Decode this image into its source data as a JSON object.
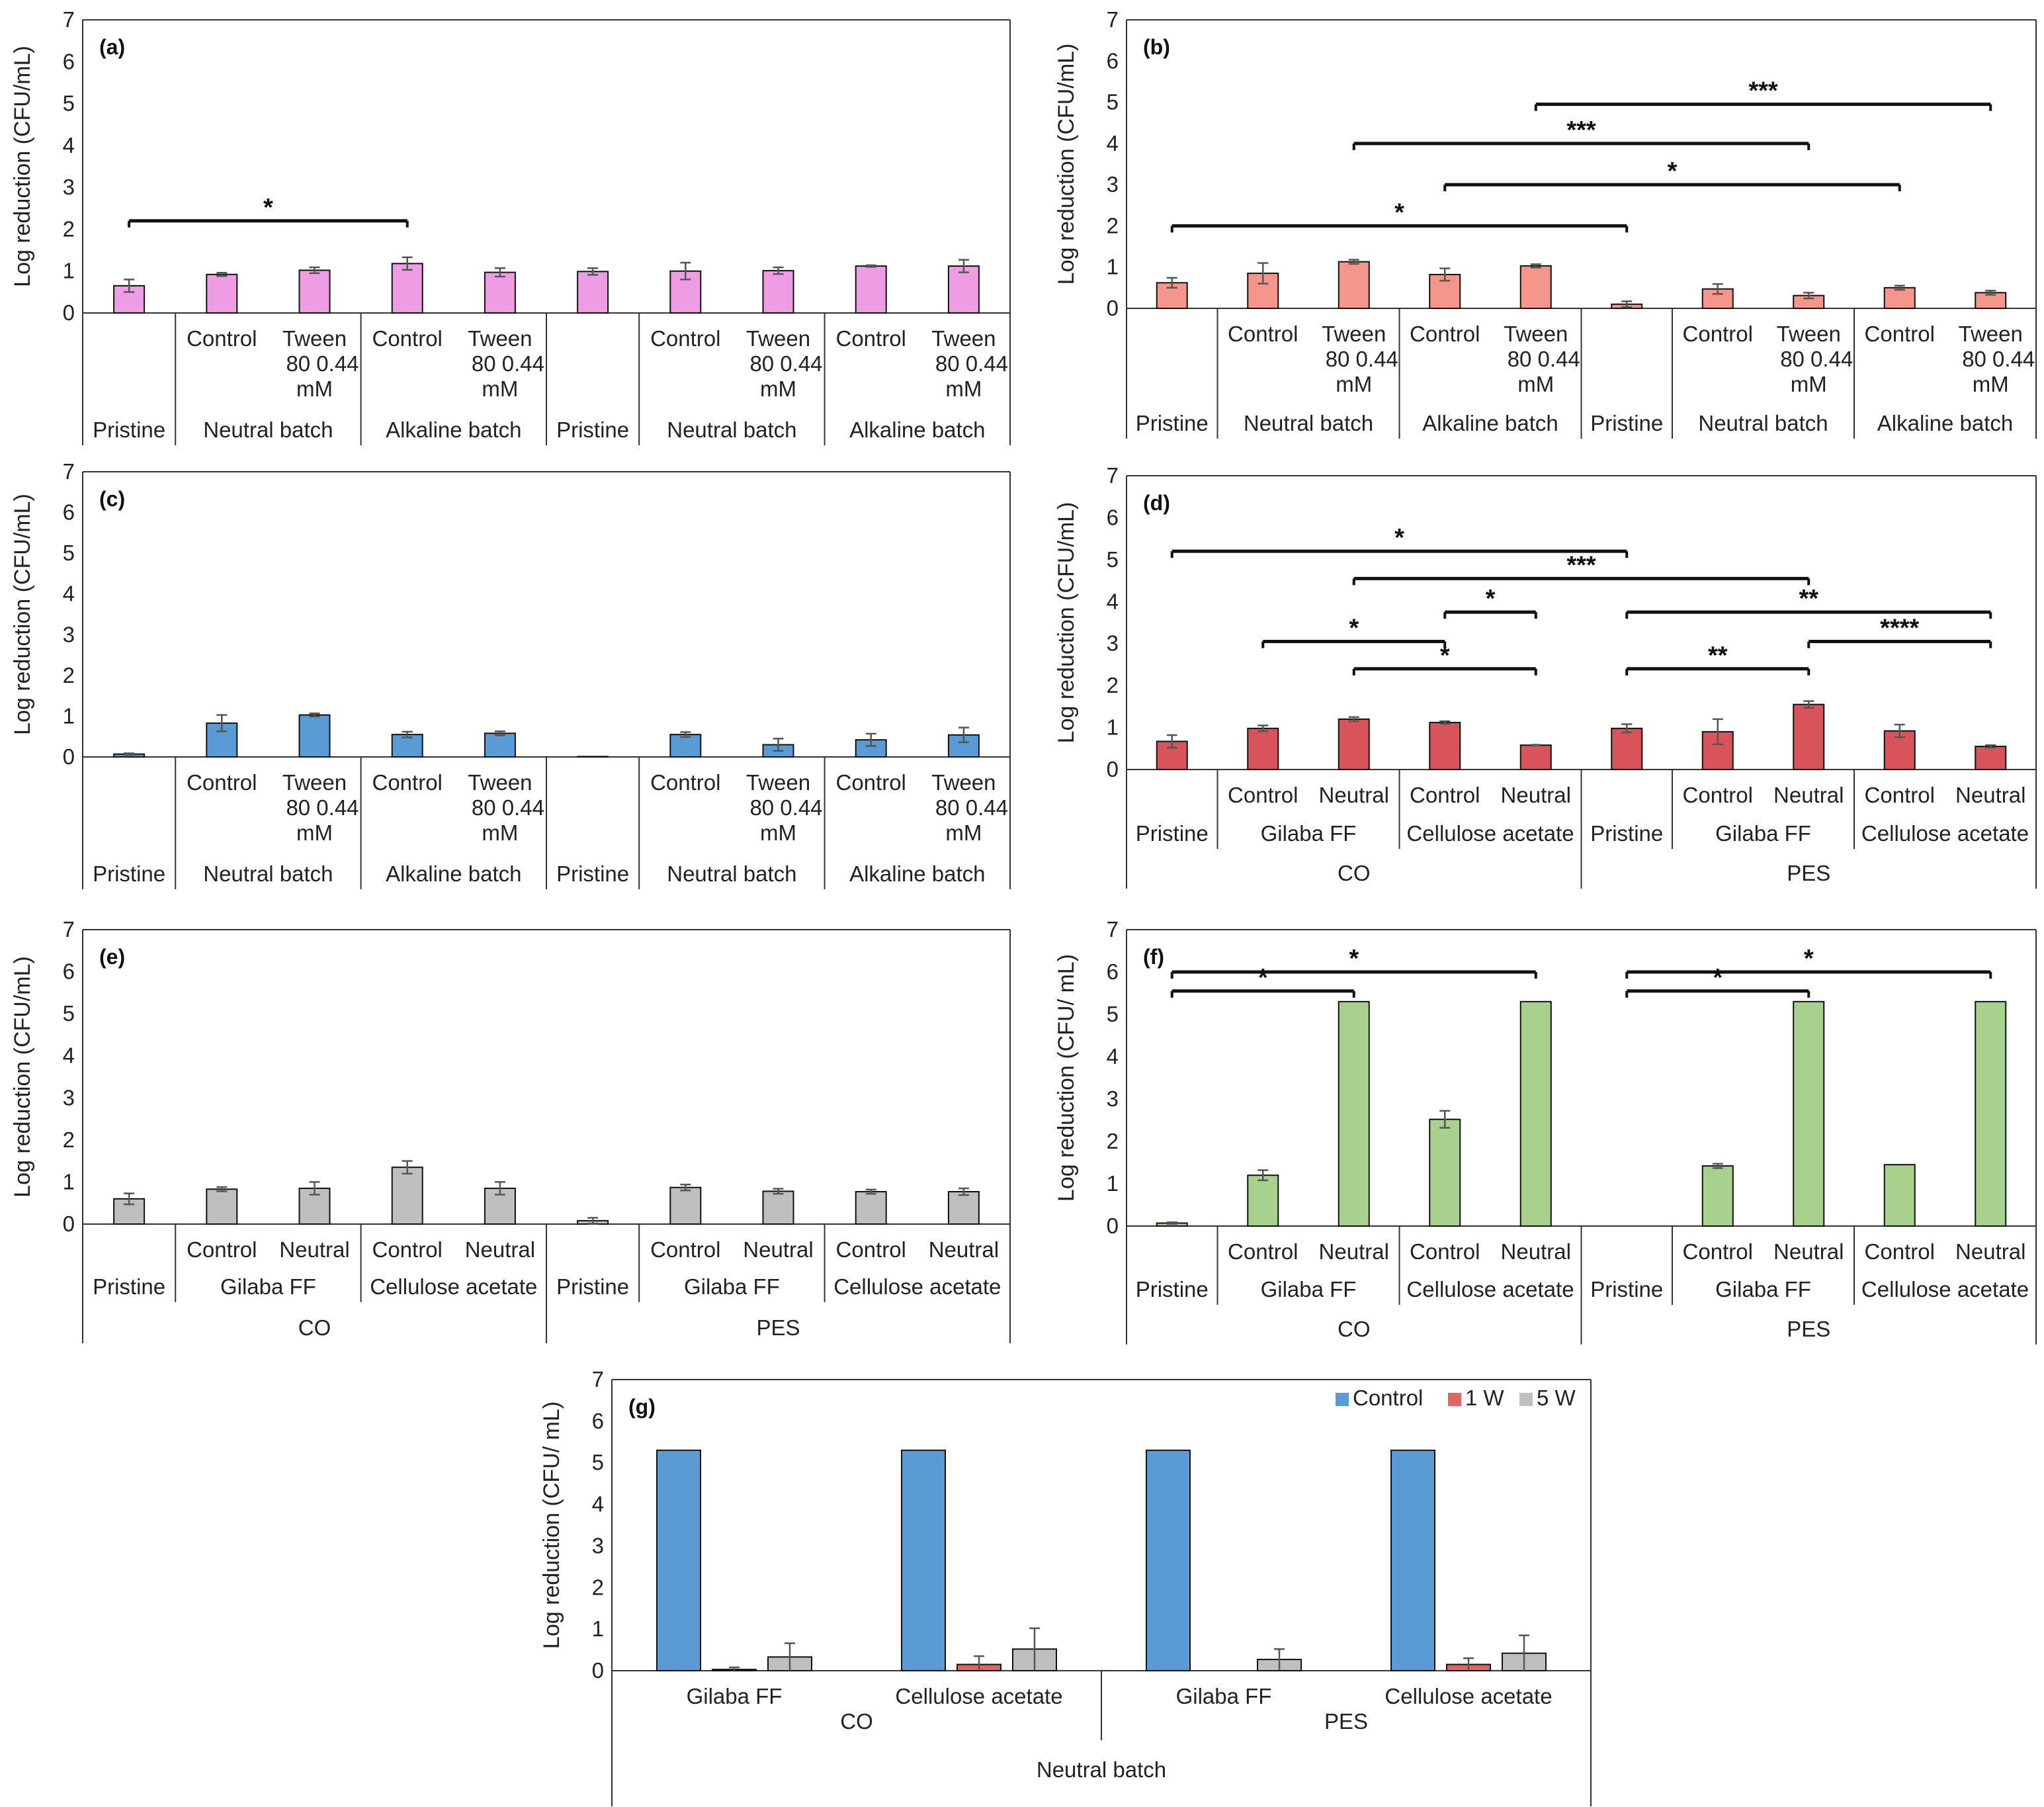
{
  "chart_data": [
    {
      "id": "a",
      "type": "bar",
      "panel_label": "(a)",
      "ylabel": "Log reduction (CFU/mL)",
      "ylim": [
        0,
        7
      ],
      "yticks": [
        "0",
        "1",
        "2",
        "3",
        "4",
        "5",
        "6",
        "7"
      ],
      "color": "#ee9ce4",
      "categories": [
        "",
        "Control",
        "Tween 80 0.44 mM",
        "Control",
        "Tween 80 0.44 mM",
        "",
        "Control",
        "Tween 80 0.44 mM",
        "Control",
        "Tween 80 0.44 mM"
      ],
      "cat_lines": [
        [],
        [
          "Control"
        ],
        [
          "Tween",
          "80   0.44",
          "mM"
        ],
        [
          "Control"
        ],
        [
          "Tween",
          "80   0.44",
          "mM"
        ],
        [],
        [
          "Control"
        ],
        [
          "Tween",
          "80   0.44",
          "mM"
        ],
        [
          "Control"
        ],
        [
          "Tween",
          "80   0.44",
          "mM"
        ]
      ],
      "groups": [
        {
          "label": "Pristine",
          "start": 0,
          "end": 0
        },
        {
          "label": "Neutral batch",
          "start": 1,
          "end": 2
        },
        {
          "label": "Alkaline batch",
          "start": 3,
          "end": 4
        },
        {
          "label": "Pristine",
          "start": 5,
          "end": 5
        },
        {
          "label": "Neutral batch",
          "start": 6,
          "end": 7
        },
        {
          "label": "Alkaline batch",
          "start": 8,
          "end": 9
        }
      ],
      "supergroups": [],
      "values": [
        0.65,
        0.92,
        1.02,
        1.18,
        0.97,
        0.99,
        1.0,
        1.01,
        1.12,
        1.12
      ],
      "errors": [
        0.15,
        0.04,
        0.07,
        0.15,
        0.1,
        0.08,
        0.2,
        0.08,
        0.02,
        0.15
      ],
      "significance": [
        {
          "from": 0,
          "to": 3,
          "y": 2.2,
          "label": "*"
        }
      ]
    },
    {
      "id": "b",
      "type": "bar",
      "panel_label": "(b)",
      "ylabel": "Log reduction (CFU/mL)",
      "ylim": [
        0,
        7
      ],
      "yticks": [
        "0",
        "1",
        "2",
        "3",
        "4",
        "5",
        "6",
        "7"
      ],
      "color": "#f5968c",
      "categories": [
        "",
        "Control",
        "Tween 80 0.44 mM",
        "Control",
        "Tween 80 0.44 mM",
        "",
        "Control",
        "Tween 80 0.44 mM",
        "Control",
        "Tween 80 0.44 mM"
      ],
      "cat_lines": [
        [],
        [
          "Control"
        ],
        [
          "Tween",
          "80   0.44",
          "mM"
        ],
        [
          "Control"
        ],
        [
          "Tween",
          "80   0.44",
          "mM"
        ],
        [],
        [
          "Control"
        ],
        [
          "Tween",
          "80   0.44",
          "mM"
        ],
        [
          "Control"
        ],
        [
          "Tween",
          "80   0.44",
          "mM"
        ]
      ],
      "groups": [
        {
          "label": "Pristine",
          "start": 0,
          "end": 0
        },
        {
          "label": "Neutral batch",
          "start": 1,
          "end": 2
        },
        {
          "label": "Alkaline batch",
          "start": 3,
          "end": 4
        },
        {
          "label": "Pristine",
          "start": 5,
          "end": 5
        },
        {
          "label": "Neutral batch",
          "start": 6,
          "end": 7
        },
        {
          "label": "Alkaline batch",
          "start": 8,
          "end": 9
        }
      ],
      "supergroups": [],
      "values": [
        0.62,
        0.85,
        1.13,
        0.82,
        1.03,
        0.1,
        0.47,
        0.31,
        0.5,
        0.38
      ],
      "errors": [
        0.12,
        0.25,
        0.05,
        0.15,
        0.04,
        0.07,
        0.12,
        0.07,
        0.05,
        0.05
      ],
      "significance": [
        {
          "from": 0,
          "to": 5,
          "y": 2.0,
          "label": "*"
        },
        {
          "from": 3,
          "to": 8,
          "y": 3.0,
          "label": "*"
        },
        {
          "from": 2,
          "to": 7,
          "y": 4.0,
          "label": "***"
        },
        {
          "from": 4,
          "to": 9,
          "y": 4.95,
          "label": "***"
        }
      ]
    },
    {
      "id": "c",
      "type": "bar",
      "panel_label": "(c)",
      "ylabel": "Log reduction (CFU/mL)",
      "ylim": [
        0,
        7
      ],
      "yticks": [
        "0",
        "1",
        "2",
        "3",
        "4",
        "5",
        "6",
        "7"
      ],
      "color": "#5b9bd5",
      "categories": [
        "",
        "Control",
        "Tween 80 0.44 mM",
        "Control",
        "Tween 80 0.44 mM",
        "",
        "Control",
        "Tween 80 0.44 mM",
        "Control",
        "Tween 80 0.44 mM"
      ],
      "cat_lines": [
        [],
        [
          "Control"
        ],
        [
          "Tween",
          "80   0.44",
          "mM"
        ],
        [
          "Control"
        ],
        [
          "Tween",
          "80   0.44",
          "mM"
        ],
        [],
        [
          "Control"
        ],
        [
          "Tween",
          "80   0.44",
          "mM"
        ],
        [
          "Control"
        ],
        [
          "Tween",
          "80   0.44",
          "mM"
        ]
      ],
      "groups": [
        {
          "label": "Pristine",
          "start": 0,
          "end": 0
        },
        {
          "label": "Neutral batch",
          "start": 1,
          "end": 2
        },
        {
          "label": "Alkaline batch",
          "start": 3,
          "end": 4
        },
        {
          "label": "Pristine",
          "start": 5,
          "end": 5
        },
        {
          "label": "Neutral batch",
          "start": 6,
          "end": 7
        },
        {
          "label": "Alkaline batch",
          "start": 8,
          "end": 9
        }
      ],
      "supergroups": [],
      "values": [
        0.07,
        0.83,
        1.03,
        0.55,
        0.58,
        0.01,
        0.55,
        0.3,
        0.42,
        0.54
      ],
      "errors": [
        0.02,
        0.2,
        0.04,
        0.07,
        0.05,
        0.0,
        0.06,
        0.15,
        0.15,
        0.18
      ],
      "significance": []
    },
    {
      "id": "d",
      "type": "bar",
      "panel_label": "(d)",
      "ylabel": "Log reduction (CFU/mL)",
      "ylim": [
        0,
        7
      ],
      "yticks": [
        "0",
        "1",
        "2",
        "3",
        "4",
        "5",
        "6",
        "7"
      ],
      "color": "#d9545a",
      "categories": [
        "",
        "Control",
        "Neutral",
        "Control",
        "Neutral",
        "",
        "Control",
        "Neutral",
        "Control",
        "Neutral"
      ],
      "cat_lines": [
        [],
        [
          "Control"
        ],
        [
          "Neutral"
        ],
        [
          "Control"
        ],
        [
          "Neutral"
        ],
        [],
        [
          "Control"
        ],
        [
          "Neutral"
        ],
        [
          "Control"
        ],
        [
          "Neutral"
        ]
      ],
      "groups": [
        {
          "label": "Pristine",
          "start": 0,
          "end": 0
        },
        {
          "label": "Gilaba FF",
          "start": 1,
          "end": 2
        },
        {
          "label": "Cellulose acetate",
          "start": 3,
          "end": 4
        },
        {
          "label": "Pristine",
          "start": 5,
          "end": 5
        },
        {
          "label": "Gilaba FF",
          "start": 6,
          "end": 7
        },
        {
          "label": "Cellulose acetate",
          "start": 8,
          "end": 9
        }
      ],
      "supergroups": [
        {
          "label": "CO",
          "start": 0,
          "end": 4
        },
        {
          "label": "PES",
          "start": 5,
          "end": 9
        }
      ],
      "values": [
        0.67,
        0.98,
        1.2,
        1.12,
        0.58,
        0.98,
        0.9,
        1.55,
        0.92,
        0.55
      ],
      "errors": [
        0.15,
        0.07,
        0.05,
        0.03,
        0.01,
        0.1,
        0.3,
        0.08,
        0.15,
        0.03
      ],
      "significance": [
        {
          "from": 0,
          "to": 5,
          "y": 5.2,
          "label": "*"
        },
        {
          "from": 2,
          "to": 7,
          "y": 4.55,
          "label": "***"
        },
        {
          "from": 3,
          "to": 4,
          "y": 3.75,
          "label": "*"
        },
        {
          "from": 5,
          "to": 9,
          "y": 3.75,
          "label": "**"
        },
        {
          "from": 1,
          "to": 3,
          "y": 3.05,
          "label": "*"
        },
        {
          "from": 7,
          "to": 9,
          "y": 3.05,
          "label": "****"
        },
        {
          "from": 2,
          "to": 4,
          "y": 2.4,
          "label": "*"
        },
        {
          "from": 5,
          "to": 7,
          "y": 2.4,
          "label": "**"
        }
      ]
    },
    {
      "id": "e",
      "type": "bar",
      "panel_label": "(e)",
      "ylabel": "Log reduction (CFU/mL)",
      "ylim": [
        0,
        7
      ],
      "yticks": [
        "0",
        "1",
        "2",
        "3",
        "4",
        "5",
        "6",
        "7"
      ],
      "color": "#bfbfbf",
      "categories": [
        "",
        "Control",
        "Neutral",
        "Control",
        "Neutral",
        "",
        "Control",
        "Neutral",
        "Control",
        "Neutral"
      ],
      "cat_lines": [
        [],
        [
          "Control"
        ],
        [
          "Neutral"
        ],
        [
          "Control"
        ],
        [
          "Neutral"
        ],
        [],
        [
          "Control"
        ],
        [
          "Neutral"
        ],
        [
          "Control"
        ],
        [
          "Neutral"
        ]
      ],
      "groups": [
        {
          "label": "Pristine",
          "start": 0,
          "end": 0
        },
        {
          "label": "Gilaba FF",
          "start": 1,
          "end": 2
        },
        {
          "label": "Cellulose acetate",
          "start": 3,
          "end": 4
        },
        {
          "label": "Pristine",
          "start": 5,
          "end": 5
        },
        {
          "label": "Gilaba FF",
          "start": 6,
          "end": 7
        },
        {
          "label": "Cellulose acetate",
          "start": 8,
          "end": 9
        }
      ],
      "supergroups": [
        {
          "label": "CO",
          "start": 0,
          "end": 4
        },
        {
          "label": "PES",
          "start": 5,
          "end": 9
        }
      ],
      "values": [
        0.6,
        0.83,
        0.85,
        1.35,
        0.85,
        0.08,
        0.87,
        0.78,
        0.77,
        0.77
      ],
      "errors": [
        0.13,
        0.05,
        0.15,
        0.15,
        0.15,
        0.07,
        0.07,
        0.06,
        0.05,
        0.08
      ],
      "significance": []
    },
    {
      "id": "f",
      "type": "bar",
      "panel_label": "(f)",
      "ylabel": "Log reduction (CFU/ mL)",
      "ylim": [
        0,
        7
      ],
      "yticks": [
        "0",
        "1",
        "2",
        "3",
        "4",
        "5",
        "6",
        "7"
      ],
      "color": "#a9d18e",
      "categories": [
        "",
        "Control",
        "Neutral",
        "Control",
        "Neutral",
        "",
        "Control",
        "Neutral",
        "Control",
        "Neutral"
      ],
      "cat_lines": [
        [],
        [
          "Control"
        ],
        [
          "Neutral"
        ],
        [
          "Control"
        ],
        [
          "Neutral"
        ],
        [],
        [
          "Control"
        ],
        [
          "Neutral"
        ],
        [
          "Control"
        ],
        [
          "Neutral"
        ]
      ],
      "groups": [
        {
          "label": "Pristine",
          "start": 0,
          "end": 0
        },
        {
          "label": "Gilaba FF",
          "start": 1,
          "end": 2
        },
        {
          "label": "Cellulose acetate",
          "start": 3,
          "end": 4
        },
        {
          "label": "Pristine",
          "start": 5,
          "end": 5
        },
        {
          "label": "Gilaba FF",
          "start": 6,
          "end": 7
        },
        {
          "label": "Cellulose acetate",
          "start": 8,
          "end": 9
        }
      ],
      "supergroups": [
        {
          "label": "CO",
          "start": 0,
          "end": 4
        },
        {
          "label": "PES",
          "start": 5,
          "end": 9
        }
      ],
      "values": [
        0.07,
        1.2,
        5.3,
        2.52,
        5.3,
        0.0,
        1.42,
        5.3,
        1.45,
        5.3
      ],
      "errors": [
        0.02,
        0.12,
        0.0,
        0.2,
        0.0,
        0.0,
        0.05,
        0.0,
        0.0,
        0.0
      ],
      "significance": [
        {
          "from": 0,
          "to": 4,
          "y": 6.0,
          "label": "*"
        },
        {
          "from": 0,
          "to": 2,
          "y": 5.55,
          "label": "*"
        },
        {
          "from": 5,
          "to": 9,
          "y": 6.0,
          "label": "*"
        },
        {
          "from": 5,
          "to": 7,
          "y": 5.55,
          "label": "*"
        }
      ]
    },
    {
      "id": "g",
      "type": "bar",
      "panel_label": "(g)",
      "ylabel": "Log reduction (CFU/ mL)",
      "ylim": [
        0,
        7
      ],
      "yticks": [
        "0",
        "1",
        "2",
        "3",
        "4",
        "5",
        "6",
        "7"
      ],
      "categories": [
        "Gilaba FF",
        "Cellulose acetate",
        "Gilaba FF",
        "Cellulose acetate"
      ],
      "groups": [
        {
          "label": "CO",
          "start": 0,
          "end": 1
        },
        {
          "label": "PES",
          "start": 2,
          "end": 3
        }
      ],
      "outer_label": "Neutral batch",
      "series": [
        {
          "name": "Control",
          "color": "#5b9bd5",
          "values": [
            5.3,
            5.3,
            5.3,
            5.3
          ],
          "errors": [
            0,
            0,
            0,
            0
          ]
        },
        {
          "name": "1 W",
          "color": "#e06666",
          "values": [
            0.03,
            0.15,
            0.0,
            0.15
          ],
          "errors": [
            0.05,
            0.2,
            0,
            0.15
          ]
        },
        {
          "name": "5 W",
          "color": "#bfbfbf",
          "values": [
            0.33,
            0.52,
            0.27,
            0.42
          ],
          "errors": [
            0.33,
            0.5,
            0.25,
            0.43
          ]
        }
      ],
      "legend": "top-right"
    }
  ]
}
